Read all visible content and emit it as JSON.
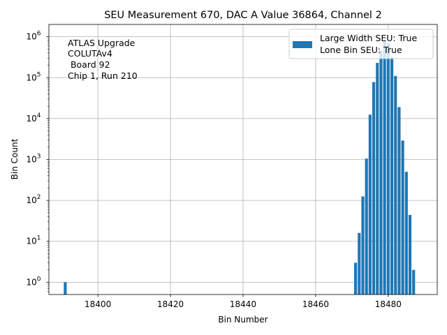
{
  "chart_data": {
    "type": "bar",
    "title": "SEU Measurement 670, DAC A Value 36864, Channel 2",
    "xlabel": "Bin Number",
    "ylabel": "Bin Count",
    "xlim": [
      18386.5,
      18493.5
    ],
    "ylim": [
      0.5,
      2000000
    ],
    "yscale": "log",
    "grid": true,
    "bar_color": "#1f77b4",
    "x_ticks": [
      18400,
      18420,
      18440,
      18460,
      18480
    ],
    "x_tick_labels": [
      "18400",
      "18420",
      "18440",
      "18460",
      "18480"
    ],
    "y_ticks": [
      1,
      10,
      100,
      1000,
      10000,
      100000,
      1000000
    ],
    "y_tick_labels": [
      {
        "base": "10",
        "exp": "0"
      },
      {
        "base": "10",
        "exp": "1"
      },
      {
        "base": "10",
        "exp": "2"
      },
      {
        "base": "10",
        "exp": "3"
      },
      {
        "base": "10",
        "exp": "4"
      },
      {
        "base": "10",
        "exp": "5"
      },
      {
        "base": "10",
        "exp": "6"
      }
    ],
    "bars": [
      {
        "x": 18391,
        "y": 1
      },
      {
        "x": 18471,
        "y": 3
      },
      {
        "x": 18472,
        "y": 16
      },
      {
        "x": 18473,
        "y": 125
      },
      {
        "x": 18474,
        "y": 1050
      },
      {
        "x": 18475,
        "y": 12500
      },
      {
        "x": 18476,
        "y": 78000
      },
      {
        "x": 18477,
        "y": 230000
      },
      {
        "x": 18478,
        "y": 460000
      },
      {
        "x": 18479,
        "y": 800000
      },
      {
        "x": 18480,
        "y": 700000
      },
      {
        "x": 18481,
        "y": 320000
      },
      {
        "x": 18482,
        "y": 110000
      },
      {
        "x": 18483,
        "y": 19000
      },
      {
        "x": 18484,
        "y": 2900
      },
      {
        "x": 18485,
        "y": 500
      },
      {
        "x": 18486,
        "y": 44
      },
      {
        "x": 18487,
        "y": 2
      }
    ],
    "legend": {
      "placement": "top-right",
      "entries": [
        "Large Width SEU: True",
        "Lone Bin SEU: True"
      ]
    },
    "annotation": [
      "ATLAS Upgrade",
      "COLUTAv4",
      " Board 92",
      "Chip 1, Run 210"
    ]
  }
}
